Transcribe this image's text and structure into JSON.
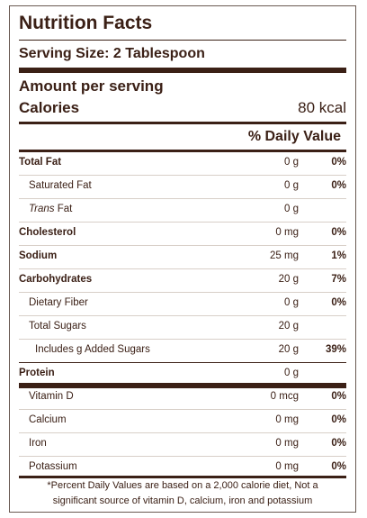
{
  "title": "Nutrition Facts",
  "serving_size": "Serving Size: 2 Tablespoon",
  "amount_per_serving": "Amount per serving",
  "calories": {
    "label": "Calories",
    "value": "80 kcal"
  },
  "daily_value_header": "% Daily Value",
  "nutrients": [
    {
      "name": "Total Fat",
      "amount": "0 g",
      "dv": "0%"
    },
    {
      "name": "Saturated Fat",
      "amount": "0 g",
      "dv": "0%"
    },
    {
      "name_italic": "Trans",
      "name_rest": " Fat",
      "amount": "0 g",
      "dv": ""
    },
    {
      "name": "Cholesterol",
      "amount": "0 mg",
      "dv": "0%"
    },
    {
      "name": "Sodium",
      "amount": "25 mg",
      "dv": "1%"
    },
    {
      "name": "Carbohydrates",
      "amount": "20 g",
      "dv": "7%"
    },
    {
      "name": "Dietary Fiber",
      "amount": "0 g",
      "dv": "0%"
    },
    {
      "name": "Total Sugars",
      "amount": "20 g",
      "dv": ""
    },
    {
      "name": "Includes g Added Sugars",
      "amount": "20 g",
      "dv": "39%"
    },
    {
      "name": "Protein",
      "amount": "0 g",
      "dv": ""
    },
    {
      "name": "Vitamin D",
      "amount": "0 mcg",
      "dv": "0%"
    },
    {
      "name": "Calcium",
      "amount": "0 mg",
      "dv": "0%"
    },
    {
      "name": "Iron",
      "amount": "0 mg",
      "dv": "0%"
    },
    {
      "name": "Potassium",
      "amount": "0 mg",
      "dv": "0%"
    }
  ],
  "footnote_line1": "*Percent Daily Values are based on a 2,000 calorie diet, Not a",
  "footnote_line2": "significant source of vitamin D, calcium, iron and potassium"
}
